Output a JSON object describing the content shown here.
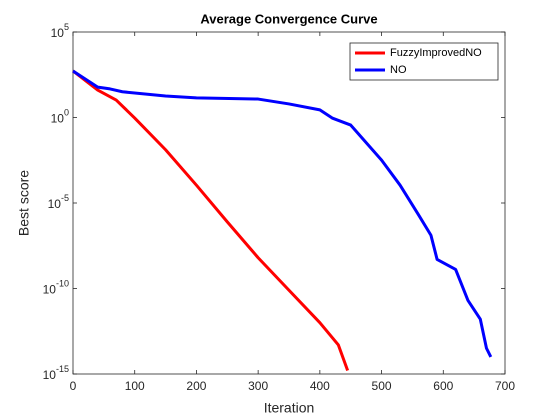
{
  "chart_data": {
    "type": "line",
    "title": "Average Convergence Curve",
    "xlabel": "Iteration",
    "ylabel": "Best score",
    "xlim": [
      0,
      700
    ],
    "xticks": [
      0,
      100,
      200,
      300,
      400,
      500,
      600,
      700
    ],
    "ylim": [
      1e-15,
      100000
    ],
    "ylog": true,
    "yticks": [
      {
        "value": 1e-15,
        "label": "10^-15"
      },
      {
        "value": 1e-10,
        "label": "10^-10"
      },
      {
        "value": 1e-05,
        "label": "10^-5"
      },
      {
        "value": 1,
        "label": "10^0"
      },
      {
        "value": 100000,
        "label": "10^5"
      }
    ],
    "legend": "upper right",
    "series": [
      {
        "name": "FuzzyImprovedNO",
        "color": "#ff0000",
        "x": [
          0,
          40,
          70,
          100,
          150,
          200,
          250,
          300,
          350,
          400,
          430,
          440,
          445
        ],
        "values": [
          525,
          40,
          10.5,
          0.93,
          0.013,
          0.00011,
          7.9e-07,
          6.3e-09,
          7.9e-11,
          1e-12,
          5e-14,
          5e-15,
          1.6e-15
        ]
      },
      {
        "name": "NO",
        "color": "#0000ff",
        "x": [
          0,
          40,
          60,
          80,
          150,
          200,
          300,
          350,
          400,
          420,
          450,
          500,
          530,
          560,
          580,
          590,
          620,
          640,
          660,
          670,
          677
        ],
        "values": [
          525,
          60,
          47,
          32,
          18,
          14,
          12,
          6.2,
          2.8,
          0.93,
          0.36,
          0.0032,
          0.00011,
          2e-06,
          1.3e-07,
          5e-09,
          1.3e-09,
          2e-11,
          1.6e-12,
          3.2e-14,
          1e-14
        ]
      }
    ]
  }
}
